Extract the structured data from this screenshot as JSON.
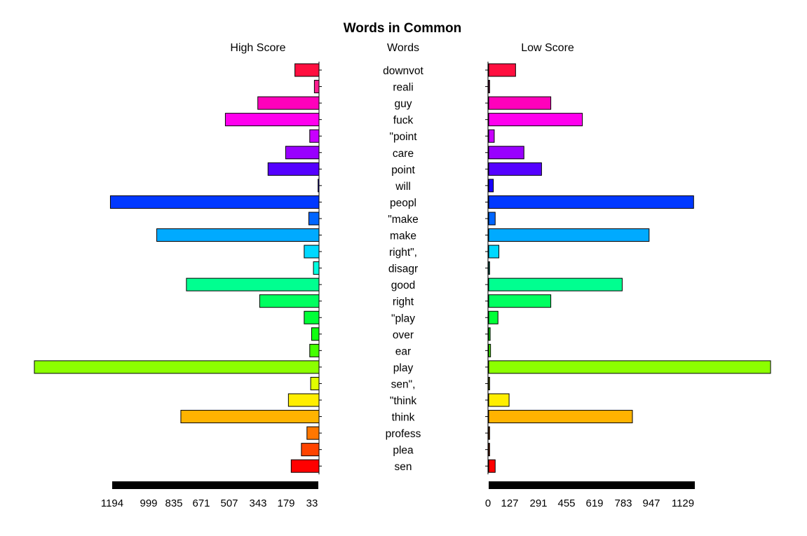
{
  "chart_data": {
    "type": "bar",
    "title": "Words in Common",
    "left_header": "High Score",
    "center_header": "Words",
    "right_header": "Low Score",
    "words": [
      "downvot",
      "reali",
      "guy",
      "fuck",
      "\"point",
      "care",
      "point",
      "will",
      "peopl",
      "\"make",
      "make",
      "right\",",
      "disagr",
      "good",
      "right",
      "\"play",
      "over",
      "ear",
      "play",
      "sen\",",
      "\"think",
      "think",
      "profess",
      "plea",
      "sen"
    ],
    "colors": [
      "#FF0F3F",
      "#FF1E8F",
      "#FF00BB",
      "#FF00EE",
      "#C800FF",
      "#9900FF",
      "#5500FF",
      "#1800FF",
      "#0038FF",
      "#0066FF",
      "#00AAFF",
      "#00D8FF",
      "#00FFE0",
      "#00FF90",
      "#00FF60",
      "#00FF38",
      "#10FF10",
      "#44FF00",
      "#8CFF00",
      "#E0FF00",
      "#FFEE00",
      "#FFB300",
      "#FF7700",
      "#FF4400",
      "#FF0000"
    ],
    "series": [
      {
        "name": "High Score",
        "values": [
          130,
          25,
          330,
          505,
          50,
          180,
          275,
          5,
          1125,
          55,
          875,
          80,
          30,
          715,
          320,
          80,
          40,
          50,
          1535,
          45,
          165,
          745,
          65,
          95,
          150
        ]
      },
      {
        "name": "Low Score",
        "values": [
          145,
          5,
          335,
          505,
          30,
          190,
          285,
          25,
          1105,
          35,
          865,
          55,
          5,
          720,
          335,
          50,
          8,
          10,
          1520,
          5,
          110,
          775,
          5,
          5,
          35
        ]
      }
    ],
    "left_ticks": [
      "1194",
      "999",
      "835",
      "671",
      "507",
      "343",
      "179",
      "33"
    ],
    "right_ticks": [
      "0",
      "127",
      "291",
      "455",
      "619",
      "783",
      "947",
      "1129"
    ]
  }
}
